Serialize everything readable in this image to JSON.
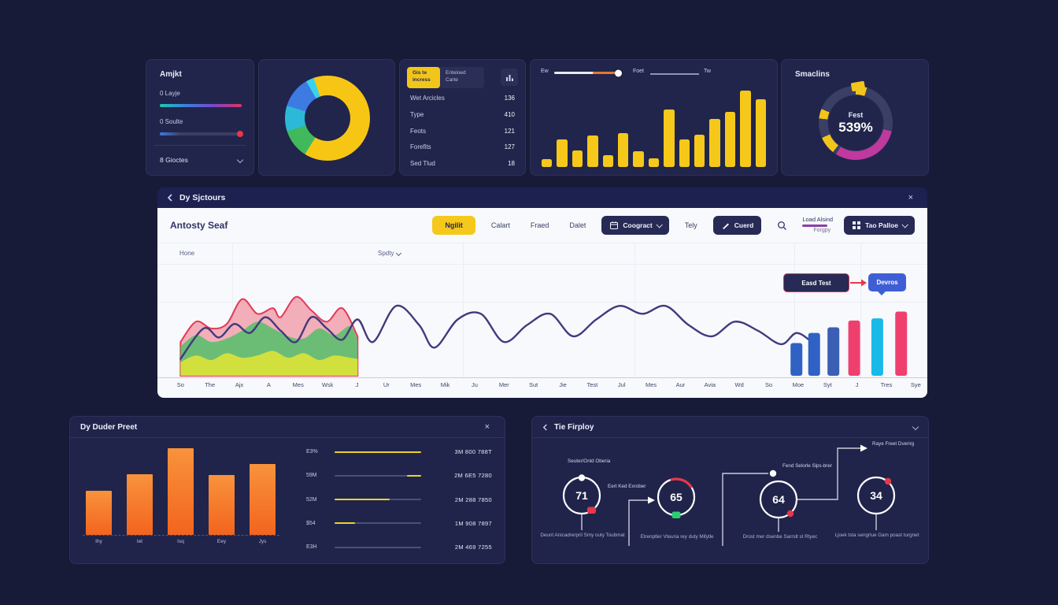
{
  "colors": {
    "bg": "#181b38",
    "card": "#21254b",
    "yellow": "#f5c81a",
    "magenta": "#c0399e",
    "orange": "#f3641e",
    "navy_pill": "#262a54",
    "annotation_red": "#e0335f",
    "tooltip_blue": "#3f5ed6"
  },
  "cards": {
    "metrics": {
      "title": "Amjkt",
      "sliders": [
        {
          "label": "0 Layje"
        },
        {
          "label": "0 Soulte"
        }
      ],
      "dropdown_label": "8 Gioctes"
    },
    "list": {
      "toggle": {
        "active": "Gis te incress",
        "inactive": "Enteloed Carte"
      },
      "rows": [
        {
          "label": "Wet Arcicles",
          "value": "136"
        },
        {
          "label": "Type",
          "value": "410"
        },
        {
          "label": "Feots",
          "value": "121"
        },
        {
          "label": "Forefits",
          "value": "127"
        },
        {
          "label": "Sed Tlud",
          "value": "18"
        }
      ]
    },
    "activity": {
      "slider_label": "Ew",
      "legend_left": "Foet",
      "legend_right": "Tw"
    },
    "gauge": {
      "title": "Smaclins",
      "center_label": "Fest",
      "center_value": "539%"
    }
  },
  "main_panel": {
    "title": "Dy Sjctours",
    "close": "×",
    "heading": "Antosty Seaf",
    "toolbar": [
      {
        "label": "Ngilit",
        "type": "pill-yellow"
      },
      {
        "label": "Calart",
        "type": "text"
      },
      {
        "label": "Fraed",
        "type": "text"
      },
      {
        "label": "Dalet",
        "type": "text"
      },
      {
        "label": "Coogract",
        "type": "pill-navy",
        "icon": "calendar",
        "caret": true
      },
      {
        "label": "Tely",
        "type": "text"
      },
      {
        "label": "Cuerd",
        "type": "pill-navy",
        "icon": "pen"
      },
      {
        "type": "search"
      },
      {
        "label": "Load Alsind",
        "sub": "Forgpy",
        "type": "stacked"
      },
      {
        "label": "Tao Palloe",
        "type": "pill-navy",
        "icon": "grid",
        "caret": true
      }
    ],
    "row_label": "Hone",
    "sort_label": "Spdty",
    "annotation": {
      "from": "Easd Test",
      "to": "Devros"
    }
  },
  "bottom_left": {
    "title": "Dy Duder Preet",
    "close": "×",
    "rows": [
      {
        "label": "E3%",
        "value": "3M 800 788T",
        "fill": [
          0,
          100
        ]
      },
      {
        "label": "59M",
        "value": "2M 6E5 7280",
        "fill": [
          84,
          100
        ]
      },
      {
        "label": "52M",
        "value": "2M 288 7850",
        "fill": [
          0,
          64
        ]
      },
      {
        "label": "$54",
        "value": "1M 908 7897",
        "fill": [
          0,
          24
        ]
      },
      {
        "label": "E3H",
        "value": "2M 469 7255",
        "fill": null
      }
    ]
  },
  "bottom_right": {
    "title": "Tie Firploy",
    "nodes": [
      {
        "value": "71",
        "top_label": "Seuter/Onld Oberia",
        "side_label": "Eert Ked Exrober",
        "caption": "Deunt Anicadrerpril Smy outy Toubmat",
        "markers": {
          "top_dot": "#ffffff",
          "chip": {
            "color": "#e8374a",
            "pos": "bottom-right"
          }
        }
      },
      {
        "value": "65",
        "caption": "Etrenptler Vteuria rey duty Mifytle",
        "markers": {
          "arc": "#e8374a",
          "chip": {
            "color": "#2ecc71",
            "pos": "bottom"
          }
        }
      },
      {
        "value": "64",
        "top_label": "Fend Selorle Sips-brer",
        "caption": "Drost mer dsenbe Sarrslt st Rtyec",
        "markers": {
          "dot": {
            "color": "#e8374a",
            "pos": "bottom-right"
          },
          "link_dot": "#ffffff"
        }
      },
      {
        "value": "34",
        "top_label": "Raye Freet Dverirg",
        "caption": "Ljoek tsta sengrlue Gam poast turgnet",
        "markers": {
          "dot": {
            "color": "#e8374a",
            "pos": "top-right"
          }
        }
      }
    ]
  },
  "chart_data": [
    {
      "id": "category-donut",
      "type": "pie",
      "slices": [
        {
          "color": "#f7c614",
          "from": 0,
          "to": 212
        },
        {
          "color": "#3fb95c",
          "from": 212,
          "to": 252
        },
        {
          "color": "#2cb9d8",
          "from": 252,
          "to": 287
        },
        {
          "color": "#3d7be2",
          "from": 287,
          "to": 330
        },
        {
          "color": "#36d4ea",
          "from": 330,
          "to": 341
        },
        {
          "color": "#f7c614",
          "from": 341,
          "to": 360
        }
      ]
    },
    {
      "id": "yellow-bars",
      "type": "bar",
      "values": [
        10,
        34,
        21,
        39,
        15,
        42,
        20,
        11,
        72,
        34,
        40,
        60,
        69,
        95,
        84
      ],
      "bar_color": "#f5c81a",
      "ylim": [
        0,
        100
      ]
    },
    {
      "id": "score-gauge",
      "type": "pie",
      "center_label": "Fest",
      "center_value": "539%",
      "slices": [
        {
          "color": "#f2c51b",
          "from": 0,
          "to": 18
        },
        {
          "color": "#3a3f66",
          "from": 18,
          "to": 103
        },
        {
          "color": "#c0399e",
          "from": 103,
          "to": 212
        },
        {
          "color": "#3a3f66",
          "from": 212,
          "to": 218
        },
        {
          "color": "#f2c51b",
          "from": 218,
          "to": 246
        },
        {
          "color": "#3a3f66",
          "from": 246,
          "to": 277
        },
        {
          "color": "#f2c51b",
          "from": 277,
          "to": 292
        },
        {
          "color": "#3a3f66",
          "from": 292,
          "to": 360
        }
      ]
    },
    {
      "id": "main-combo",
      "type": "line",
      "ylim": [
        0,
        100
      ],
      "categories": [
        "So",
        "The",
        "Ajx",
        "A",
        "Mes",
        "Wsk",
        "J",
        "Ur",
        "Mes",
        "Mik",
        "Ju",
        "Mer",
        "Sut",
        "Jie",
        "Test",
        "Jul",
        "Mes",
        "Aur",
        "Avia",
        "Wd",
        "So",
        "Moe",
        "Syt",
        "J",
        "Tres",
        "Sye"
      ],
      "areas": [
        {
          "name": "area-red",
          "fill": "rgba(232,62,86,0.40)",
          "stroke": "#e23a57",
          "points": [
            [
              3,
              30
            ],
            [
              5,
              48
            ],
            [
              7,
              42
            ],
            [
              9,
              46
            ],
            [
              11,
              68
            ],
            [
              13,
              55
            ],
            [
              15,
              60
            ],
            [
              16,
              52
            ],
            [
              18,
              70
            ],
            [
              20,
              58
            ],
            [
              22,
              48
            ],
            [
              24,
              60
            ],
            [
              26,
              35
            ]
          ]
        },
        {
          "name": "area-green",
          "fill": "rgba(84,192,106,0.85)",
          "stroke": "none",
          "points": [
            [
              3,
              26
            ],
            [
              5,
              36
            ],
            [
              7,
              30
            ],
            [
              9,
              33
            ],
            [
              11,
              40
            ],
            [
              13,
              48
            ],
            [
              15,
              42
            ],
            [
              17,
              35
            ],
            [
              19,
              33
            ],
            [
              21,
              42
            ],
            [
              23,
              36
            ],
            [
              25,
              44
            ],
            [
              26,
              32
            ]
          ]
        },
        {
          "name": "area-yellow",
          "fill": "rgba(216,226,58,0.95)",
          "stroke": "none",
          "points": [
            [
              3,
              12
            ],
            [
              5,
              18
            ],
            [
              7,
              14
            ],
            [
              9,
              20
            ],
            [
              11,
              16
            ],
            [
              13,
              18
            ],
            [
              15,
              22
            ],
            [
              17,
              16
            ],
            [
              19,
              20
            ],
            [
              21,
              14
            ],
            [
              23,
              18
            ],
            [
              25,
              16
            ],
            [
              26,
              15
            ]
          ]
        }
      ],
      "line": {
        "name": "trend-line",
        "color": "#423a7d",
        "points": [
          [
            3,
            15
          ],
          [
            6,
            42
          ],
          [
            8,
            34
          ],
          [
            10,
            46
          ],
          [
            12,
            38
          ],
          [
            14,
            52
          ],
          [
            16,
            40
          ],
          [
            18,
            30
          ],
          [
            20,
            52
          ],
          [
            22,
            42
          ],
          [
            24,
            32
          ],
          [
            26,
            50
          ],
          [
            28,
            30
          ],
          [
            31,
            62
          ],
          [
            34,
            45
          ],
          [
            36,
            25
          ],
          [
            39,
            50
          ],
          [
            42,
            55
          ],
          [
            45,
            30
          ],
          [
            48,
            45
          ],
          [
            51,
            55
          ],
          [
            54,
            35
          ],
          [
            57,
            50
          ],
          [
            60,
            62
          ],
          [
            63,
            55
          ],
          [
            66,
            62
          ],
          [
            69,
            45
          ],
          [
            72,
            35
          ],
          [
            75,
            48
          ],
          [
            78,
            40
          ],
          [
            81,
            28
          ],
          [
            83,
            38
          ],
          [
            85,
            30
          ]
        ]
      },
      "bars": [
        {
          "x": 83.0,
          "value": 29,
          "color": "#2f62c4"
        },
        {
          "x": 85.3,
          "value": 38,
          "color": "#2f62c4"
        },
        {
          "x": 87.8,
          "value": 43,
          "color": "#3a5fb4"
        },
        {
          "x": 90.5,
          "value": 49,
          "color": "#ef3f6e"
        },
        {
          "x": 93.5,
          "value": 51,
          "color": "#19b9ea"
        },
        {
          "x": 96.6,
          "value": 57,
          "color": "#ef3f6e"
        }
      ]
    },
    {
      "id": "orange-bars",
      "type": "bar",
      "categories": [
        "Ihy",
        "Iet",
        "Isq",
        "Eey",
        "Jys"
      ],
      "values": [
        51,
        70,
        100,
        69,
        82
      ],
      "ylim": [
        0,
        100
      ]
    }
  ]
}
